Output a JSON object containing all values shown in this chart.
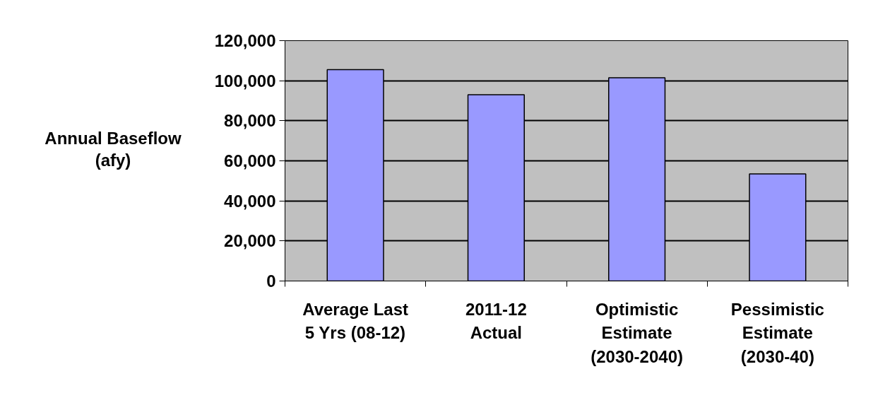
{
  "chart_data": {
    "type": "bar",
    "ylabel": "Annual Baseflow (afy)",
    "categories": [
      "Average Last 5 Yrs (08-12)",
      "2011-12 Actual",
      "Optimistic Estimate (2030-2040)",
      "Pessimistic Estimate (2030-40)"
    ],
    "values": [
      105500,
      93000,
      101500,
      53500
    ],
    "color": "#9999ff",
    "ylim": [
      0,
      120000
    ],
    "yticks": [
      0,
      {
        "value": 20000,
        "label": "20,000"
      },
      {
        "value": 40000,
        "label": "40,000"
      },
      {
        "value": 60000,
        "label": "60,000"
      },
      {
        "value": 80000,
        "label": "80,000"
      },
      {
        "value": 100000,
        "label": "100,000"
      },
      {
        "value": 120000,
        "label": "120,000"
      }
    ],
    "grid": "y"
  }
}
